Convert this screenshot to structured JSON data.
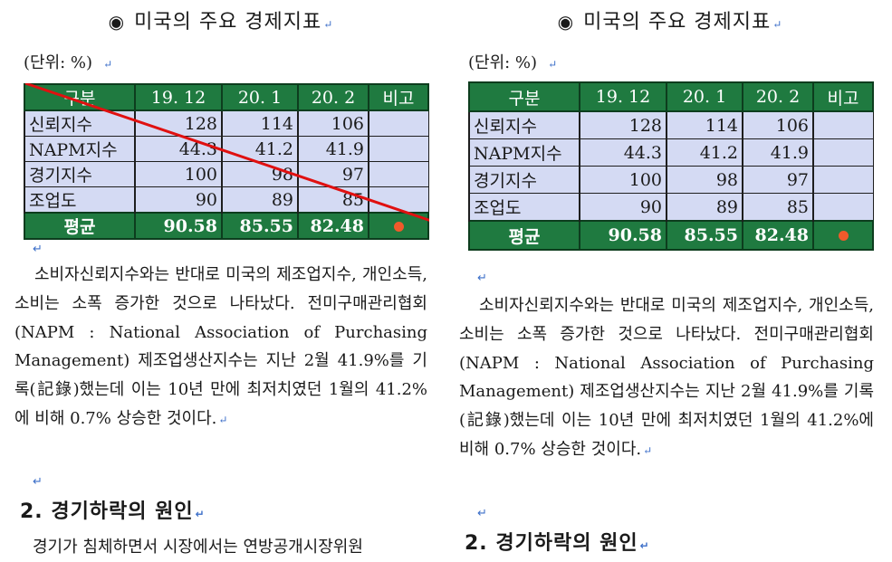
{
  "title": "미국의 주요 경제지표",
  "title_mark": "◉",
  "return_mark": "↵",
  "unit": "(단위: %)",
  "table": {
    "headers": [
      "구분",
      "19. 12",
      "20. 1",
      "20. 2",
      "비고"
    ],
    "rows": [
      [
        "신뢰지수",
        "128",
        "114",
        "106",
        ""
      ],
      [
        "NAPM지수",
        "44.3",
        "41.2",
        "41.9",
        ""
      ],
      [
        "경기지수",
        "100",
        "98",
        "97",
        ""
      ],
      [
        "조업도",
        "90",
        "89",
        "85",
        ""
      ]
    ],
    "average": {
      "label": "평균",
      "values": [
        "90.58",
        "85.55",
        "82.48"
      ]
    }
  },
  "paragraph_left": "소비자신뢰지수와는 반대로 미국의 제조업지수, 개인소득, 소비는 소폭 증가한 것으로 나타났다. 전미구매관리협회(NAPM : National Association of Purchasing Management) 제조업생산지수는 지난 2월 41.9%를 기록(記錄)했는데 이는 10년 만에 최저치였던 1월의 41.2%에 비해 0.7% 상승한 것이다.",
  "paragraph_right": "소비자신뢰지수와는 반대로 미국의 제조업지수, 개인소득, 소비는 소폭 증가한 것으로 나타났다. 전미구매관리협회(NAPM : National Association of Purchasing Management) 제조업생산지수는 지난 2월 41.9%를 기록(記錄)했는데 이는 10년 만에 최저치였던 1월의 41.2%에 비해 0.7% 상승한 것이다.",
  "heading": "2. 경기하락의 원인",
  "sub_left": "경기가 침체하면서 시장에서는 연방공개시장위원",
  "colors": {
    "header_green": "#1f7a40",
    "cell_blue": "#d4daf3",
    "slash_red": "#e01010",
    "dot_orange": "#f05a2b"
  }
}
